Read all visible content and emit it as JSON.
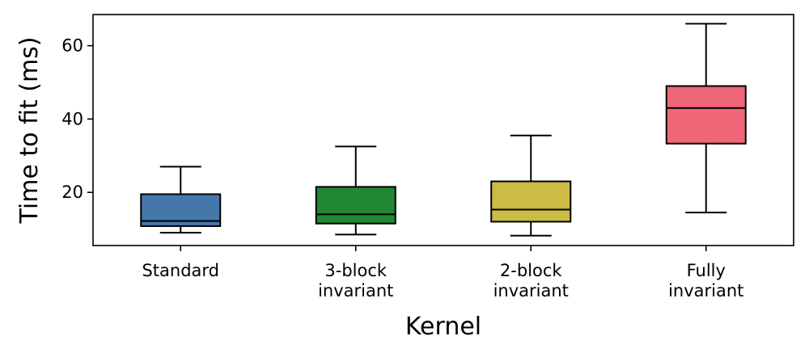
{
  "chart_data": {
    "type": "box",
    "title": "",
    "xlabel": "Kernel",
    "ylabel": "Time to fit (ms)",
    "ylim": [
      5.5,
      68.5
    ],
    "yticks": [
      20,
      40,
      60
    ],
    "grid": false,
    "legend": "none",
    "categories": [
      [
        "Standard"
      ],
      [
        "3-block",
        "invariant"
      ],
      [
        "2-block",
        "invariant"
      ],
      [
        "Fully",
        "invariant"
      ]
    ],
    "boxes": [
      {
        "whisker_low": 9.0,
        "q1": 10.8,
        "median": 12.2,
        "q3": 19.5,
        "whisker_high": 27.0,
        "color": "#4477AA"
      },
      {
        "whisker_low": 8.5,
        "q1": 11.5,
        "median": 14.0,
        "q3": 21.5,
        "whisker_high": 32.5,
        "color": "#228833"
      },
      {
        "whisker_low": 8.2,
        "q1": 12.0,
        "median": 15.3,
        "q3": 23.0,
        "whisker_high": 35.5,
        "color": "#CCBB44"
      },
      {
        "whisker_low": 14.5,
        "q1": 33.3,
        "median": 43.0,
        "q3": 49.0,
        "whisker_high": 66.0,
        "color": "#EE6677"
      }
    ]
  }
}
